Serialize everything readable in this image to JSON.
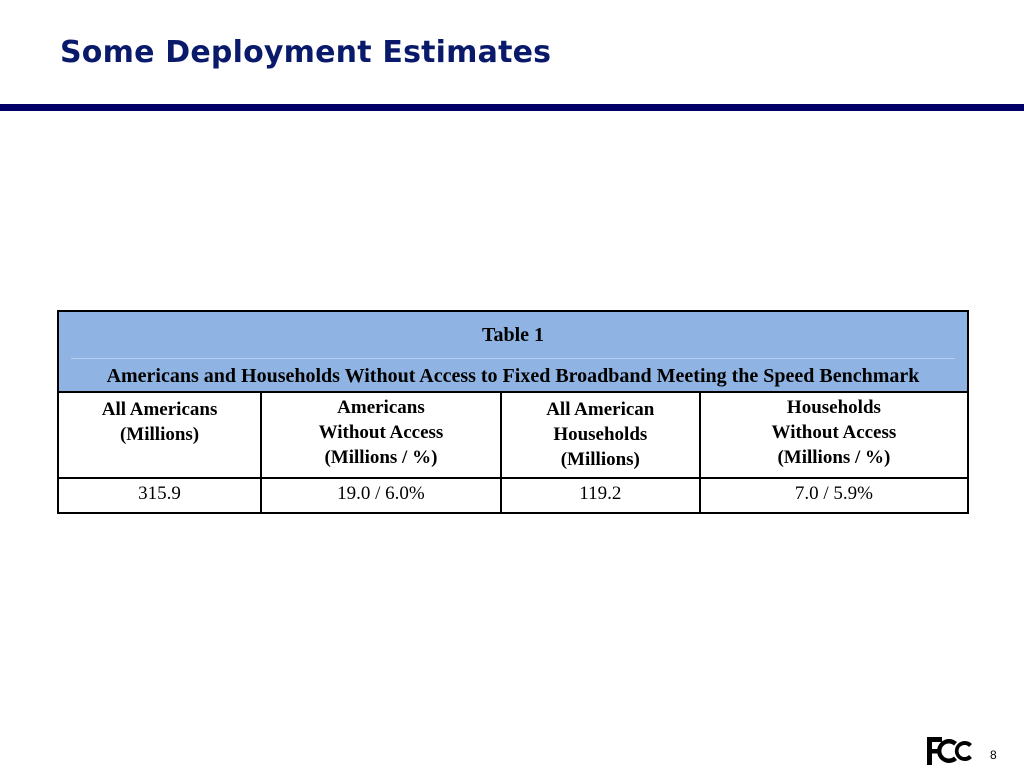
{
  "slide": {
    "title": "Some Deployment Estimates",
    "page_number": "8",
    "logo": {
      "icon": "fcc-logo",
      "text": "FCC"
    },
    "accent_color": "#000066",
    "title_color": "#0a1a6b",
    "table_header_color": "#8fb4e3"
  },
  "table": {
    "title": "Table 1",
    "subtitle": "Americans and Households Without Access to Fixed Broadband Meeting the Speed Benchmark",
    "columns": [
      {
        "lines": [
          "All Americans",
          "(Millions)"
        ]
      },
      {
        "lines": [
          "Americans",
          "Without Access",
          "(Millions / %)"
        ]
      },
      {
        "lines": [
          "All American",
          "Households",
          "(Millions)"
        ]
      },
      {
        "lines": [
          "Households",
          "Without Access",
          "(Millions / %)"
        ]
      }
    ],
    "rows": [
      [
        "315.9",
        "19.0 / 6.0%",
        "119.2",
        "7.0 / 5.9%"
      ]
    ]
  }
}
